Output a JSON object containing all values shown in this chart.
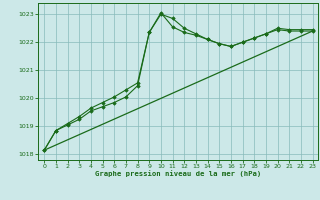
{
  "title": "Graphe pression niveau de la mer (hPa)",
  "bg_color": "#cce8e8",
  "grid_color": "#88bbbb",
  "line_color": "#1a6b1a",
  "marker_color": "#1a6b1a",
  "xlim": [
    -0.5,
    23.5
  ],
  "ylim": [
    1017.8,
    1023.4
  ],
  "xticks": [
    0,
    1,
    2,
    3,
    4,
    5,
    6,
    7,
    8,
    9,
    10,
    11,
    12,
    13,
    14,
    15,
    16,
    17,
    18,
    19,
    20,
    21,
    22,
    23
  ],
  "yticks": [
    1018,
    1019,
    1020,
    1021,
    1022,
    1023
  ],
  "series1_x": [
    0,
    1,
    2,
    3,
    4,
    5,
    6,
    7,
    8,
    9,
    10,
    11,
    12,
    13,
    14,
    15,
    16,
    17,
    18,
    19,
    20,
    21,
    22,
    23
  ],
  "series1_y": [
    1018.15,
    1018.85,
    1019.05,
    1019.25,
    1019.55,
    1019.7,
    1019.85,
    1020.05,
    1020.45,
    1022.35,
    1023.0,
    1022.85,
    1022.5,
    1022.3,
    1022.1,
    1021.95,
    1021.85,
    1022.0,
    1022.15,
    1022.3,
    1022.45,
    1022.4,
    1022.4,
    1022.4
  ],
  "series2_x": [
    0,
    1,
    2,
    3,
    4,
    5,
    6,
    7,
    8,
    9,
    10,
    11,
    12,
    13,
    14,
    15,
    16,
    17,
    18,
    19,
    20,
    21,
    22,
    23
  ],
  "series2_y": [
    1018.15,
    1018.85,
    1019.1,
    1019.35,
    1019.65,
    1019.85,
    1020.05,
    1020.3,
    1020.55,
    1022.35,
    1023.05,
    1022.55,
    1022.35,
    1022.25,
    1022.1,
    1021.95,
    1021.85,
    1022.0,
    1022.15,
    1022.3,
    1022.5,
    1022.45,
    1022.45,
    1022.45
  ],
  "trend_x": [
    0,
    23
  ],
  "trend_y": [
    1018.15,
    1022.4
  ]
}
